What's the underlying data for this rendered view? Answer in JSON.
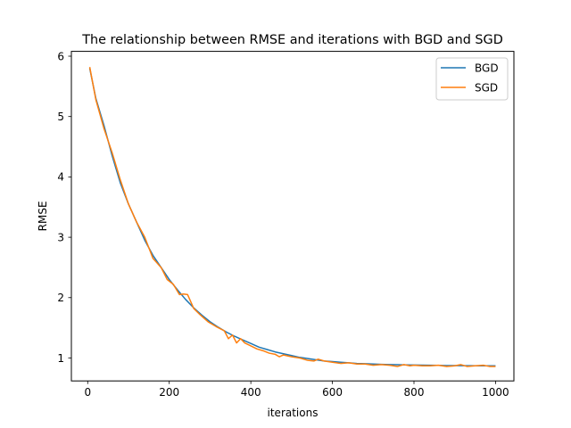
{
  "chart_data": {
    "type": "line",
    "title": "The relationship between RMSE and iterations with BGD and SGD",
    "xlabel": "iterations",
    "ylabel": "RMSE",
    "xlim": [
      -40,
      1045
    ],
    "ylim": [
      0.62,
      6.08
    ],
    "xticks": [
      0,
      200,
      400,
      600,
      800,
      1000
    ],
    "yticks": [
      1,
      2,
      3,
      4,
      5,
      6
    ],
    "grid": false,
    "legend": "top-right",
    "series": [
      {
        "name": "BGD",
        "color": "#1f77b4",
        "x": [
          5,
          20,
          40,
          60,
          80,
          100,
          120,
          140,
          160,
          180,
          200,
          220,
          240,
          260,
          280,
          300,
          320,
          340,
          360,
          380,
          400,
          420,
          440,
          460,
          480,
          500,
          520,
          540,
          560,
          580,
          600,
          620,
          640,
          660,
          680,
          700,
          720,
          740,
          760,
          780,
          800,
          820,
          840,
          860,
          880,
          900,
          920,
          940,
          960,
          980,
          1000
        ],
        "y": [
          5.8,
          5.3,
          4.85,
          4.35,
          3.9,
          3.55,
          3.25,
          2.95,
          2.7,
          2.5,
          2.3,
          2.13,
          1.97,
          1.83,
          1.71,
          1.6,
          1.51,
          1.43,
          1.36,
          1.3,
          1.24,
          1.18,
          1.14,
          1.1,
          1.07,
          1.04,
          1.01,
          0.99,
          0.97,
          0.95,
          0.94,
          0.93,
          0.92,
          0.91,
          0.905,
          0.9,
          0.895,
          0.89,
          0.888,
          0.885,
          0.883,
          0.881,
          0.879,
          0.877,
          0.875,
          0.874,
          0.873,
          0.872,
          0.871,
          0.87,
          0.87
        ]
      },
      {
        "name": "SGD",
        "color": "#ff7f0e",
        "x": [
          5,
          20,
          40,
          60,
          80,
          100,
          120,
          140,
          160,
          180,
          195,
          210,
          225,
          235,
          245,
          260,
          275,
          295,
          315,
          335,
          345,
          355,
          365,
          375,
          385,
          400,
          415,
          430,
          445,
          460,
          470,
          480,
          500,
          520,
          540,
          555,
          565,
          580,
          600,
          620,
          640,
          660,
          680,
          700,
          720,
          740,
          760,
          775,
          790,
          800,
          820,
          840,
          860,
          880,
          900,
          915,
          930,
          950,
          970,
          985,
          1000
        ],
        "y": [
          5.82,
          5.28,
          4.8,
          4.4,
          3.95,
          3.55,
          3.25,
          3.0,
          2.65,
          2.5,
          2.3,
          2.22,
          2.05,
          2.06,
          2.05,
          1.82,
          1.72,
          1.6,
          1.52,
          1.45,
          1.32,
          1.38,
          1.25,
          1.32,
          1.25,
          1.2,
          1.15,
          1.12,
          1.08,
          1.06,
          1.02,
          1.05,
          1.02,
          1.0,
          0.96,
          0.95,
          0.98,
          0.95,
          0.93,
          0.91,
          0.92,
          0.9,
          0.9,
          0.88,
          0.89,
          0.88,
          0.86,
          0.89,
          0.87,
          0.88,
          0.87,
          0.87,
          0.88,
          0.86,
          0.87,
          0.89,
          0.86,
          0.87,
          0.88,
          0.86,
          0.86
        ]
      }
    ]
  }
}
